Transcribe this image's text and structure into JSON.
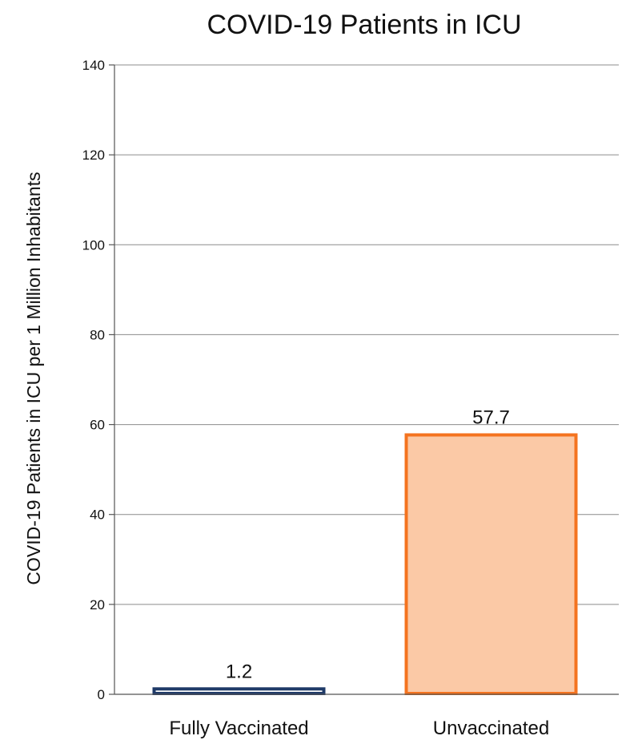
{
  "chart_data": {
    "type": "bar",
    "title": "COVID-19 Patients in ICU",
    "xlabel": "",
    "ylabel": "COVID-19 Patients in ICU  per 1 Million Inhabitants",
    "categories": [
      "Fully Vaccinated",
      "Unvaccinated"
    ],
    "values": [
      1.2,
      57.7
    ],
    "data_labels": [
      "1.2",
      "57.7"
    ],
    "ylim": [
      0,
      140
    ],
    "yticks": [
      0,
      20,
      40,
      60,
      80,
      100,
      120,
      140
    ],
    "grid": true,
    "legend": "none",
    "bar_fill_colors": [
      "#ffffff",
      "#fbc9a6"
    ],
    "bar_edge_colors": [
      "#1f3a68",
      "#f4731f"
    ]
  }
}
